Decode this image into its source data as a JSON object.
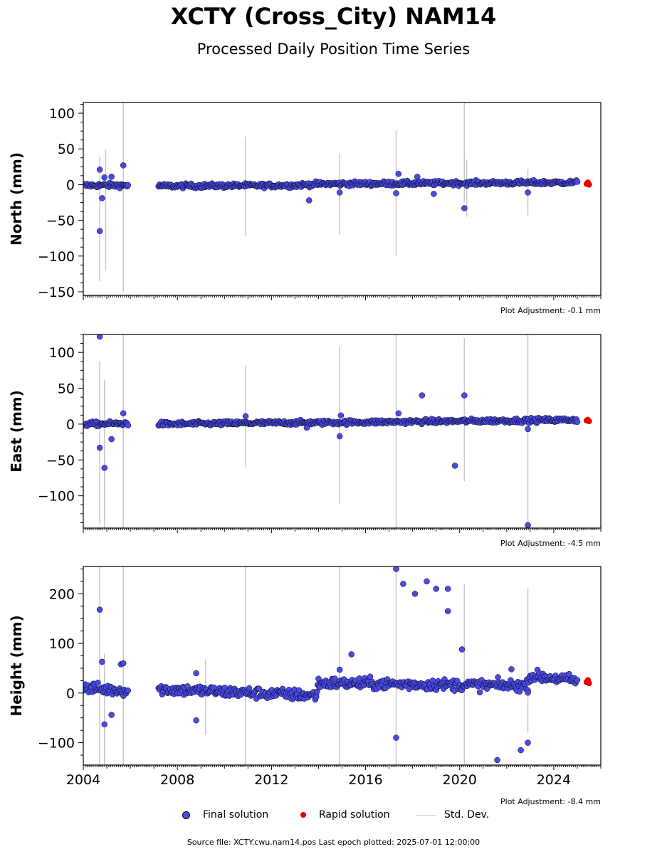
{
  "title": "XCTY (Cross_City) NAM14",
  "subtitle": "Processed Daily Position Time Series",
  "legend": {
    "final": "Final solution",
    "rapid": "Rapid solution",
    "std": "Std. Dev."
  },
  "source": "Source file: XCTY.cwu.nam14.pos  Last epoch plotted: 2025-07-01 12:00:00",
  "colors": {
    "final": "#4a4ae8",
    "rapid": "#e60000",
    "std": "#c8c8c8",
    "edge": "#000000"
  },
  "chart_data": [
    {
      "type": "scatter",
      "ylabel": "North (mm)",
      "adjustment": "Plot Adjustment: -0.1 mm",
      "xlim": [
        2004.0,
        2026.0
      ],
      "ylim": [
        -155,
        115
      ],
      "yticks": [
        100,
        50,
        0,
        -50,
        -100,
        -150
      ],
      "xticks": [
        2004,
        2008,
        2012,
        2016,
        2020,
        2024
      ],
      "trend_final": [
        [
          2004.0,
          -1
        ],
        [
          2005.9,
          -1
        ],
        [
          2007.2,
          -2
        ],
        [
          2013.0,
          -1
        ],
        [
          2014.0,
          1
        ],
        [
          2025.0,
          3
        ]
      ],
      "outliers": [
        [
          2004.7,
          21
        ],
        [
          2004.7,
          -65
        ],
        [
          2004.8,
          -19
        ],
        [
          2004.9,
          10
        ],
        [
          2005.2,
          11
        ],
        [
          2005.7,
          27
        ],
        [
          2013.6,
          -22
        ],
        [
          2014.9,
          -11
        ],
        [
          2017.3,
          -12
        ],
        [
          2017.4,
          15
        ],
        [
          2018.2,
          11
        ],
        [
          2018.9,
          -13
        ],
        [
          2020.2,
          -33
        ],
        [
          2022.9,
          -11
        ]
      ],
      "rapid": [
        [
          2025.4,
          1
        ],
        [
          2025.45,
          3
        ],
        [
          2025.5,
          0
        ]
      ],
      "std_bars": [
        [
          2004.7,
          -135,
          39
        ],
        [
          2004.95,
          -120,
          49
        ],
        [
          2005.7,
          -150,
          115
        ],
        [
          2010.9,
          -72,
          67
        ],
        [
          2014.9,
          -70,
          43
        ],
        [
          2017.3,
          -100,
          76
        ],
        [
          2020.2,
          -25,
          115
        ],
        [
          2020.3,
          -45,
          35
        ],
        [
          2022.9,
          -44,
          22
        ]
      ]
    },
    {
      "type": "scatter",
      "ylabel": "East (mm)",
      "adjustment": "Plot Adjustment: -4.5 mm",
      "xlim": [
        2004.0,
        2026.0
      ],
      "ylim": [
        -145,
        125
      ],
      "yticks": [
        100,
        50,
        0,
        -50,
        -100
      ],
      "xticks": [
        2004,
        2008,
        2012,
        2016,
        2020,
        2024
      ],
      "trend_final": [
        [
          2004.0,
          0
        ],
        [
          2005.9,
          1
        ],
        [
          2007.2,
          0
        ],
        [
          2013.0,
          2
        ],
        [
          2014.0,
          2
        ],
        [
          2025.0,
          6
        ]
      ],
      "outliers": [
        [
          2004.7,
          122
        ],
        [
          2004.7,
          -33
        ],
        [
          2004.9,
          -61
        ],
        [
          2005.2,
          -21
        ],
        [
          2005.7,
          15
        ],
        [
          2010.9,
          11
        ],
        [
          2013.5,
          -5
        ],
        [
          2014.9,
          -17
        ],
        [
          2014.95,
          12
        ],
        [
          2017.4,
          15
        ],
        [
          2018.4,
          40
        ],
        [
          2019.8,
          -58
        ],
        [
          2020.2,
          40
        ],
        [
          2022.9,
          -141
        ],
        [
          2022.9,
          -7
        ]
      ],
      "rapid": [
        [
          2025.4,
          5
        ],
        [
          2025.45,
          6
        ],
        [
          2025.5,
          4
        ]
      ],
      "std_bars": [
        [
          2004.7,
          -140,
          88
        ],
        [
          2004.9,
          -145,
          62
        ],
        [
          2005.7,
          -145,
          125
        ],
        [
          2010.9,
          -60,
          82
        ],
        [
          2014.9,
          -112,
          108
        ],
        [
          2017.3,
          -145,
          125
        ],
        [
          2020.2,
          -80,
          120
        ],
        [
          2022.9,
          -145,
          125
        ]
      ]
    },
    {
      "type": "scatter",
      "ylabel": "Height (mm)",
      "adjustment": "Plot Adjustment: -8.4 mm",
      "xlim": [
        2004.0,
        2026.0
      ],
      "ylim": [
        -145,
        255
      ],
      "yticks": [
        200,
        100,
        0,
        -100
      ],
      "xticks": [
        2004,
        2008,
        2012,
        2016,
        2020,
        2024
      ],
      "xtick_labels": [
        "2004",
        "2008",
        "2012",
        "2016",
        "2020",
        "2024"
      ],
      "trend_final": [
        [
          2004.0,
          10
        ],
        [
          2005.9,
          5
        ],
        [
          2007.2,
          8
        ],
        [
          2013.9,
          -5
        ],
        [
          2014.0,
          20
        ],
        [
          2022.9,
          15
        ],
        [
          2023.0,
          35
        ],
        [
          2025.0,
          25
        ]
      ],
      "outliers": [
        [
          2004.7,
          168
        ],
        [
          2004.8,
          63
        ],
        [
          2004.9,
          -63
        ],
        [
          2005.2,
          -44
        ],
        [
          2005.6,
          58
        ],
        [
          2005.7,
          60
        ],
        [
          2008.8,
          40
        ],
        [
          2008.8,
          -55
        ],
        [
          2014.9,
          47
        ],
        [
          2015.4,
          78
        ],
        [
          2017.3,
          250
        ],
        [
          2017.3,
          -90
        ],
        [
          2017.6,
          220
        ],
        [
          2018.1,
          200
        ],
        [
          2018.6,
          225
        ],
        [
          2019.0,
          210
        ],
        [
          2019.5,
          210
        ],
        [
          2019.5,
          165
        ],
        [
          2020.1,
          88
        ],
        [
          2021.6,
          -135
        ],
        [
          2022.2,
          48
        ],
        [
          2022.6,
          -115
        ],
        [
          2022.9,
          -100
        ]
      ],
      "rapid": [
        [
          2025.4,
          22
        ],
        [
          2025.45,
          26
        ],
        [
          2025.5,
          20
        ]
      ],
      "std_bars": [
        [
          2004.7,
          -145,
          255
        ],
        [
          2004.9,
          -145,
          80
        ],
        [
          2005.7,
          -145,
          255
        ],
        [
          2009.2,
          -85,
          68
        ],
        [
          2010.9,
          -145,
          255
        ],
        [
          2014.9,
          -145,
          255
        ],
        [
          2017.3,
          -145,
          255
        ],
        [
          2020.2,
          -145,
          220
        ],
        [
          2022.9,
          -80,
          210
        ]
      ]
    }
  ]
}
